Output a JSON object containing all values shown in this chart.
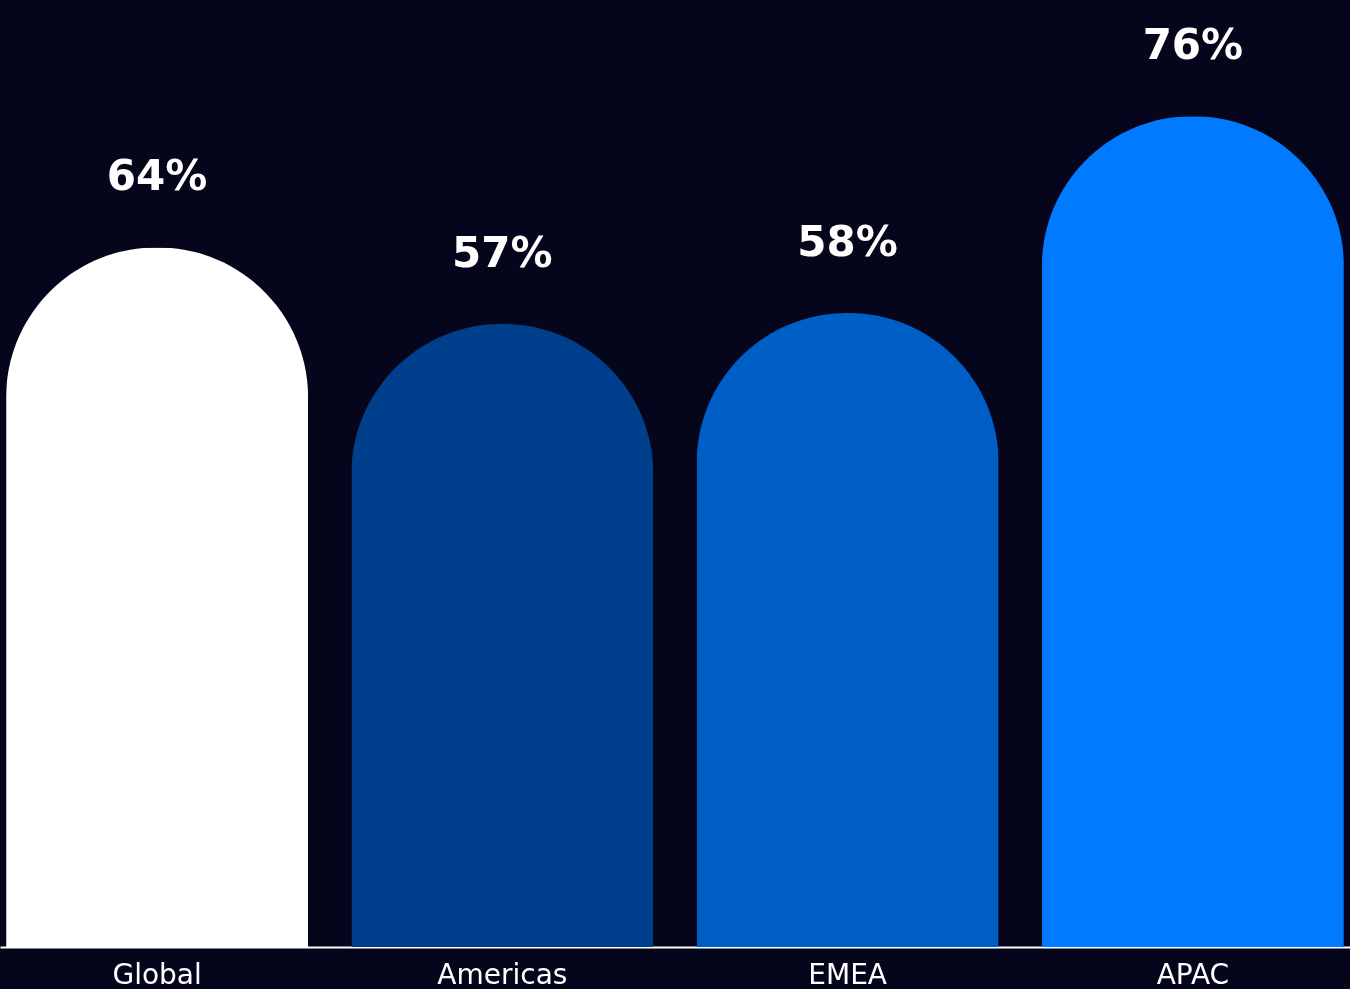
{
  "chart_data": {
    "type": "bar",
    "categories": [
      "Global",
      "Americas",
      "EMEA",
      "APAC"
    ],
    "values": [
      64,
      57,
      58,
      76
    ],
    "colors": [
      "#ffffff",
      "#003f8c",
      "#005ec7",
      "#007bff"
    ],
    "value_labels": [
      "64%",
      "57%",
      "58%",
      "76%"
    ],
    "grid": false,
    "legend": false
  }
}
